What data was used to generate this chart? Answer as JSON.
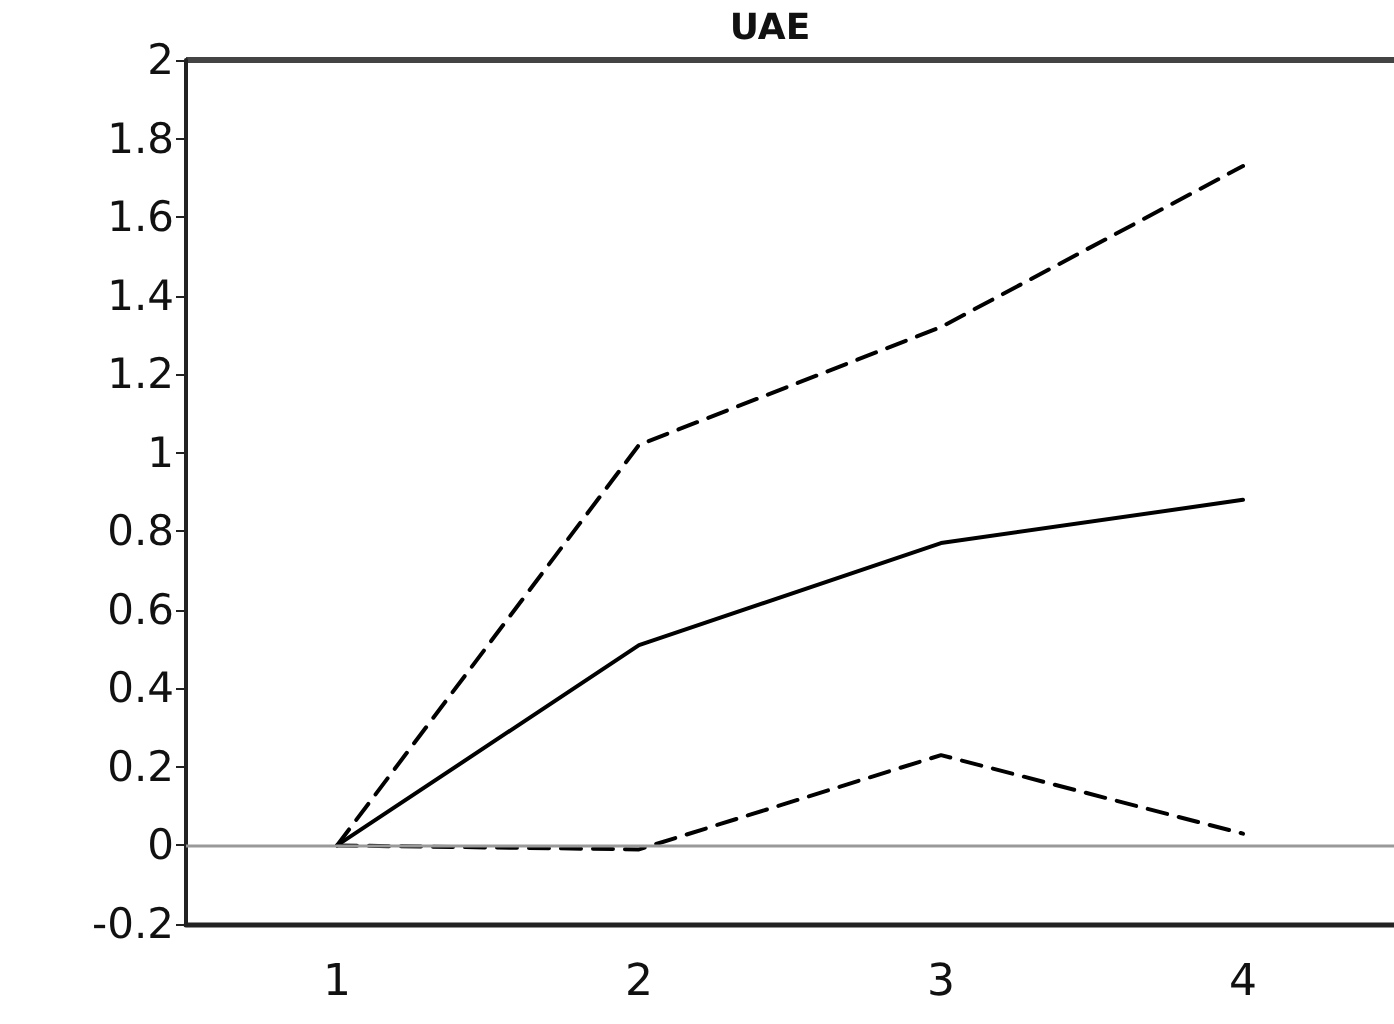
{
  "chart_data": {
    "type": "line",
    "title": "UAE",
    "categories": [
      "1",
      "2",
      "3",
      "4"
    ],
    "series": [
      {
        "color": "#000000",
        "values": [
          0,
          1.02,
          1.32,
          1.73
        ],
        "line_style": "dashed"
      },
      {
        "color": "#000000",
        "values": [
          0,
          0.51,
          0.77,
          0.88
        ],
        "line_style": "solid"
      },
      {
        "color": "#000000",
        "values": [
          0,
          -0.01,
          0.23,
          0.03
        ],
        "line_style": "dashed"
      }
    ],
    "ylim": [
      -0.2,
      2
    ],
    "yticks": [
      -0.2,
      0,
      0.2,
      0.4,
      0.6,
      0.8,
      1,
      1.2,
      1.4,
      1.6,
      1.8,
      2
    ],
    "ref_lines": [
      {
        "axis": "y",
        "value": 0,
        "color": "#999999"
      }
    ],
    "grid": false,
    "marker": "none"
  }
}
